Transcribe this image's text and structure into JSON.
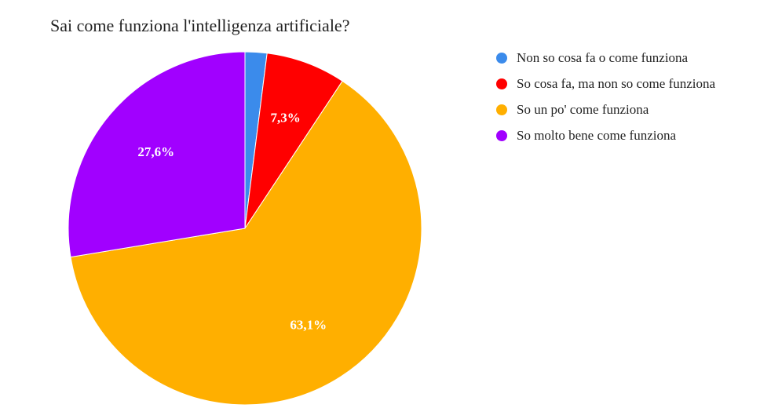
{
  "chart_data": {
    "type": "pie",
    "title": "Sai come funziona l'intelligenza artificiale?",
    "legend_position": "right",
    "categories": [
      "Non so cosa fa o come funziona",
      "So cosa fa, ma non so come funziona",
      "So un po' come funziona",
      "So molto bene come funziona"
    ],
    "values": [
      2.0,
      7.3,
      63.1,
      27.6
    ],
    "labels": [
      "",
      "7,3%",
      "63,1%",
      "27,6%"
    ],
    "colors": [
      "#3b8beb",
      "#ff0000",
      "#ffaf00",
      "#a100ff"
    ]
  }
}
